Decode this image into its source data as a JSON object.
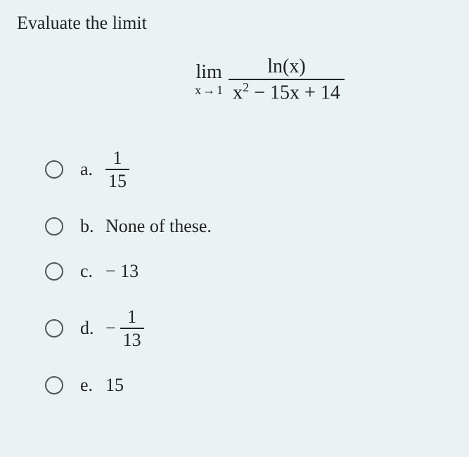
{
  "prompt": "Evaluate the limit",
  "expression": {
    "lim_label": "lim",
    "lim_var": "x",
    "lim_arrow": "→",
    "lim_to": "1",
    "numerator": "ln(x)",
    "den_left": "x",
    "den_exp": "2",
    "den_rest": " − 15x + 14"
  },
  "options": [
    {
      "letter": "a.",
      "type": "frac",
      "neg": "",
      "num": "1",
      "den": "15"
    },
    {
      "letter": "b.",
      "type": "text",
      "text": "None of these."
    },
    {
      "letter": "c.",
      "type": "text",
      "text": "− 13"
    },
    {
      "letter": "d.",
      "type": "frac",
      "neg": "−",
      "num": "1",
      "den": "13"
    },
    {
      "letter": "e.",
      "type": "text",
      "text": "15"
    }
  ],
  "colors": {
    "background": "#eaf2f3",
    "text": "#222222",
    "radio_border": "#555555"
  },
  "typography": {
    "family": "serif",
    "prompt_fontsize": 26,
    "expr_fontsize": 28,
    "option_fontsize": 26
  }
}
